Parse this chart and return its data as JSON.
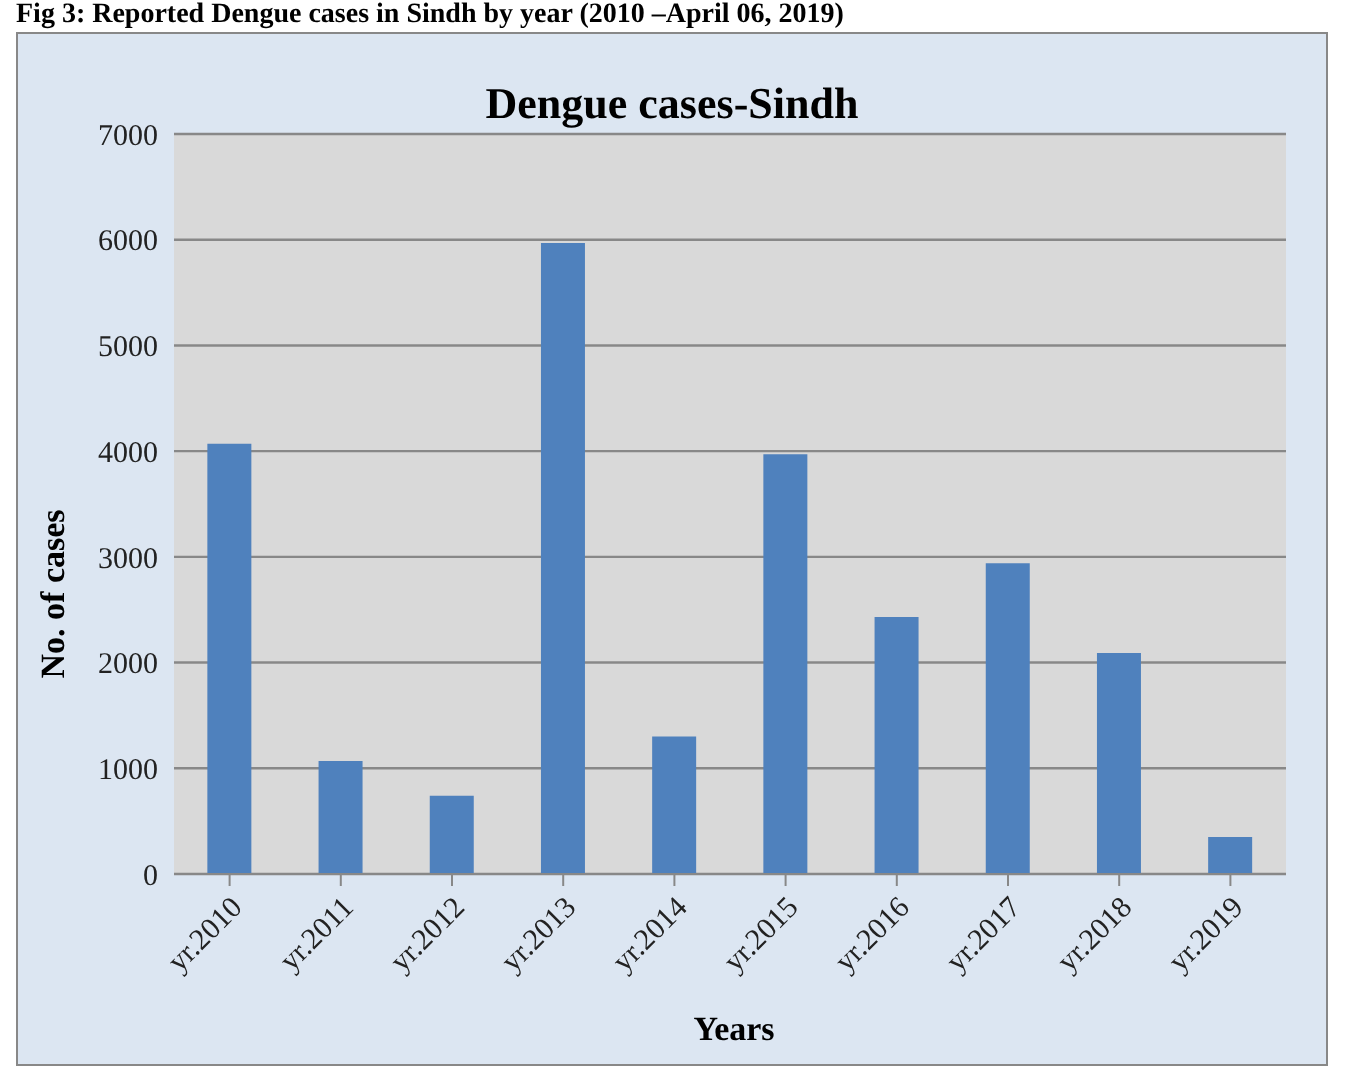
{
  "chart_data": {
    "type": "bar",
    "title": "Dengue cases-Sindh",
    "xlabel": "Years",
    "ylabel": "No. of cases",
    "annotations": [
      "Fig 3: Reported Dengue cases in Sindh by year (2010 –April 06, 2019)"
    ],
    "categories": [
      "yr.2010",
      "yr.2011",
      "yr.2012",
      "yr.2013",
      "yr.2014",
      "yr.2015",
      "yr.2016",
      "yr.2017",
      "yr.2018",
      "yr.2019"
    ],
    "values": [
      4070,
      1070,
      740,
      5970,
      1300,
      3970,
      2430,
      2940,
      2090,
      350
    ],
    "color": "#4f81bd",
    "ylim": [
      0,
      7000
    ],
    "yticks": [
      0,
      1000,
      2000,
      3000,
      4000,
      5000,
      6000,
      7000
    ],
    "grid": "y"
  }
}
